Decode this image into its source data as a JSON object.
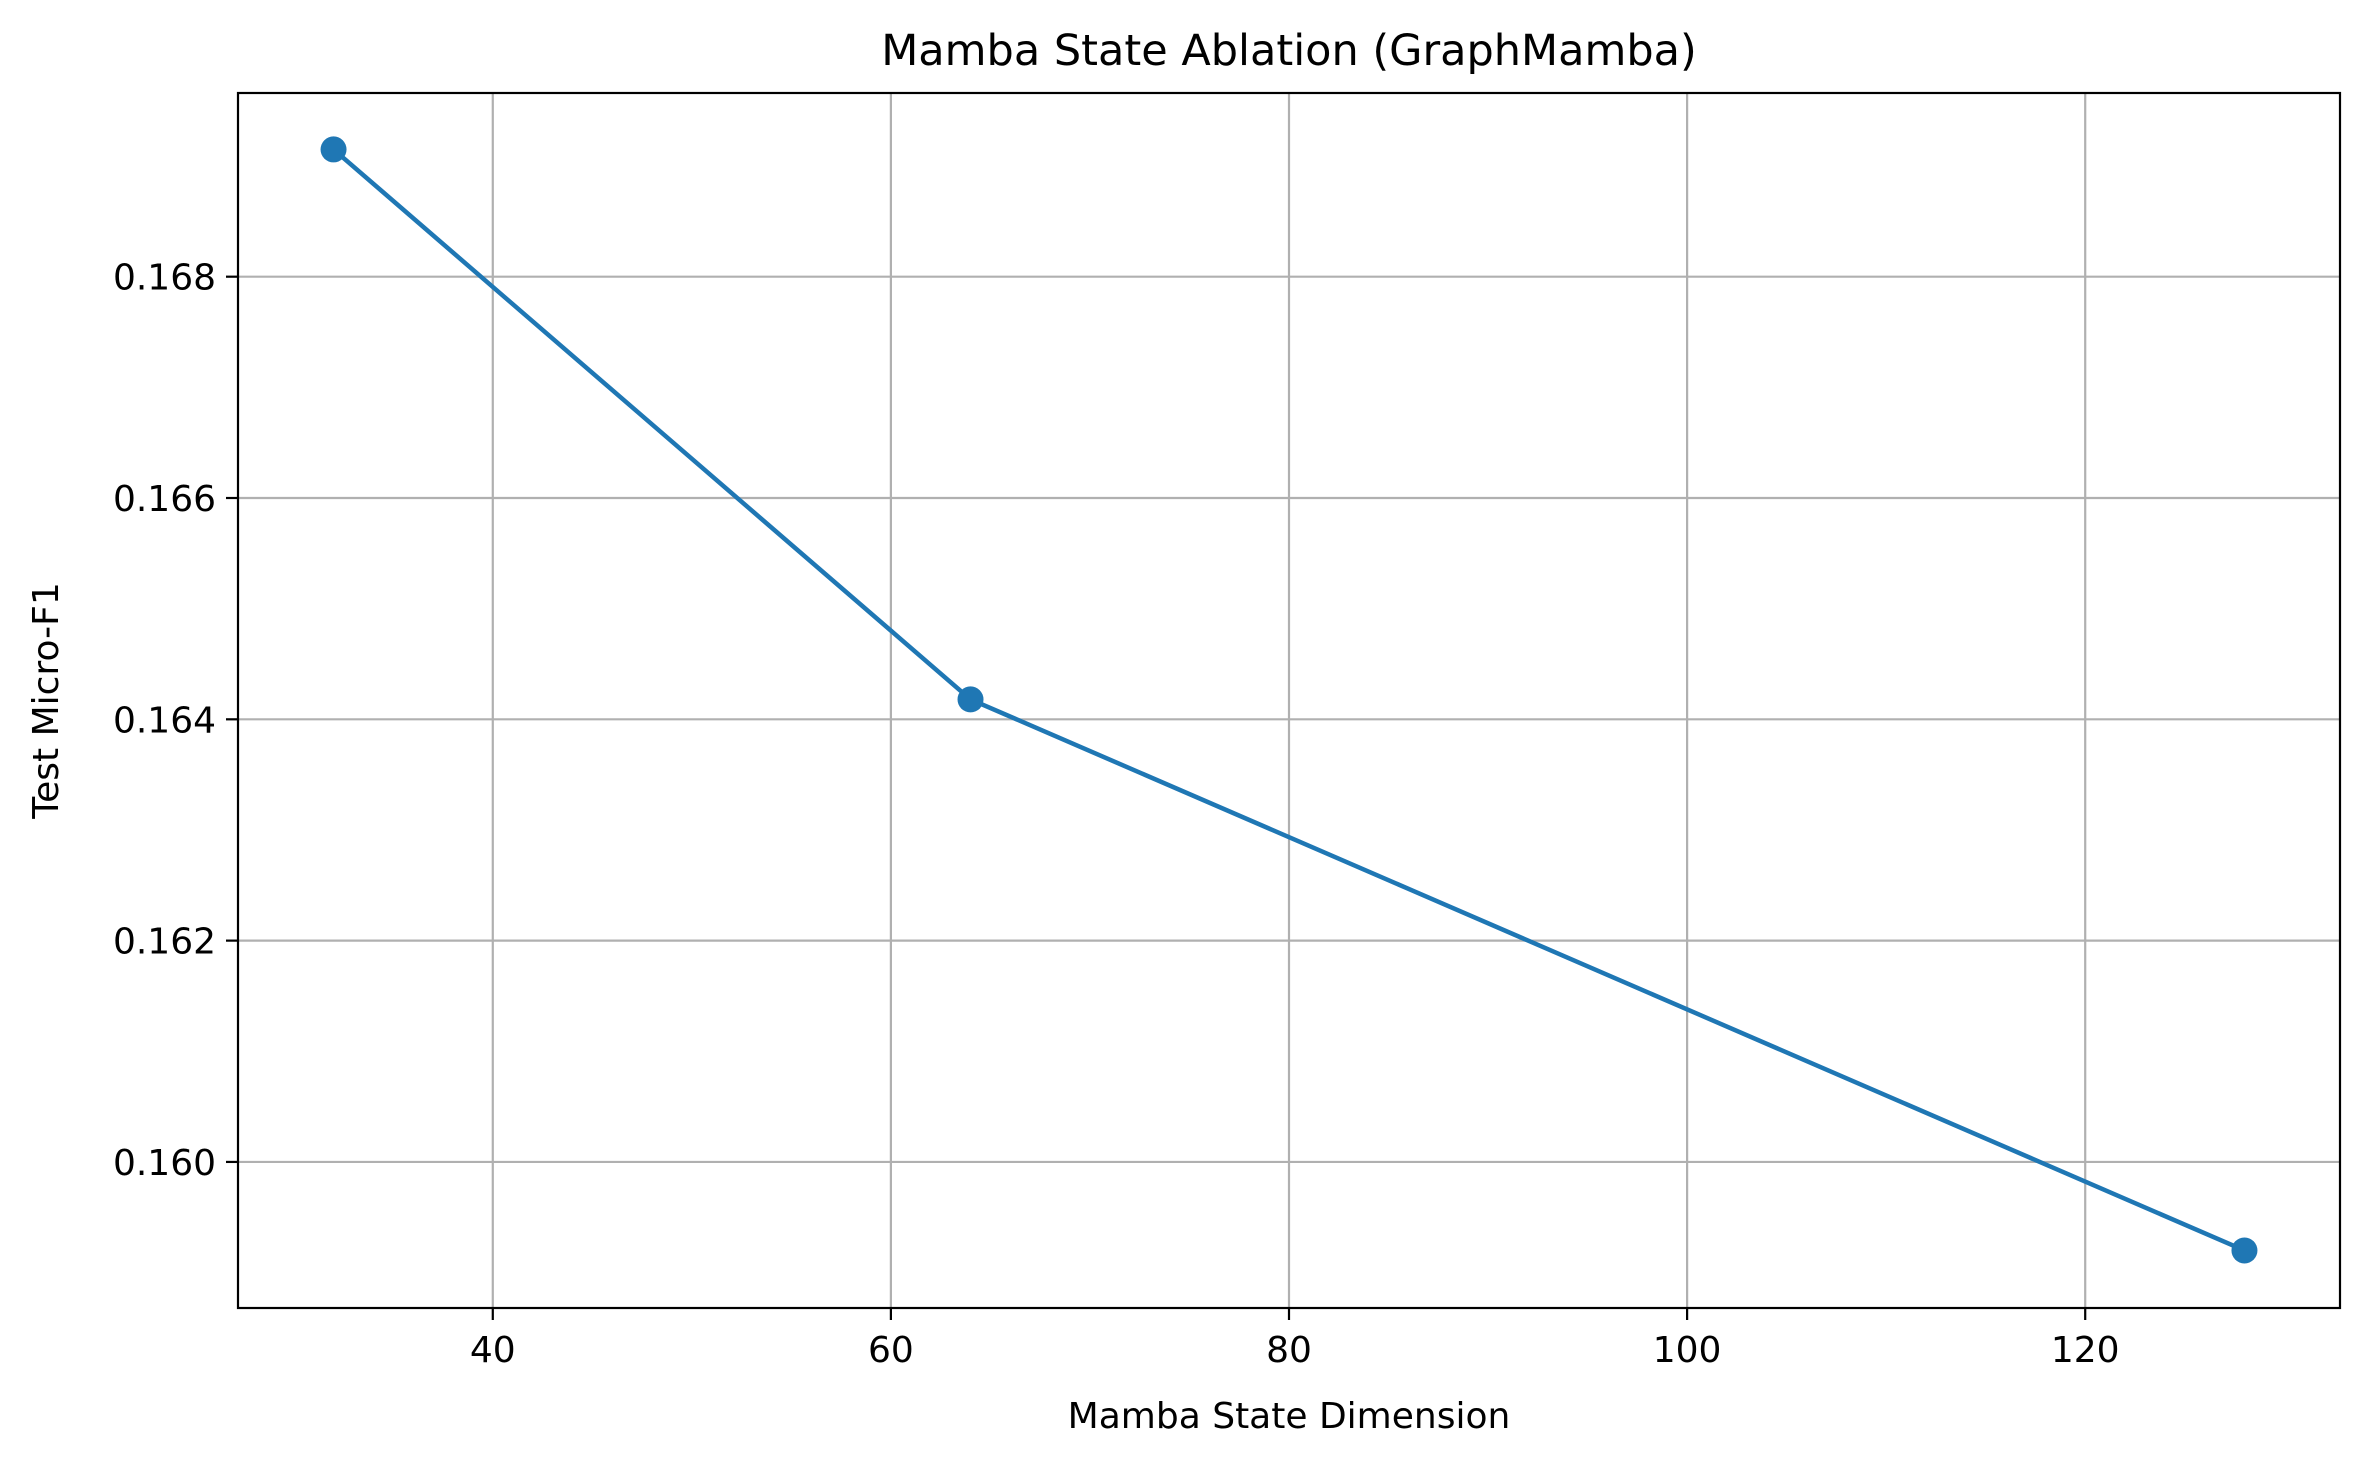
{
  "chart_data": {
    "type": "line",
    "title": "Mamba State Ablation (GraphMamba)",
    "xlabel": "Mamba State Dimension",
    "ylabel": "Test Micro-F1",
    "x": [
      32,
      64,
      128
    ],
    "series": [
      {
        "values": [
          0.16915,
          0.16418,
          0.1592
        ],
        "color": "#1f77b4",
        "marker": "circle"
      }
    ],
    "xlim": [
      27.2,
      132.8
    ],
    "ylim": [
      0.15868,
      0.16966
    ],
    "xticks": [
      40,
      60,
      80,
      100,
      120
    ],
    "xtick_labels": [
      "40",
      "60",
      "80",
      "100",
      "120"
    ],
    "yticks": [
      0.16,
      0.162,
      0.164,
      0.166,
      0.168
    ],
    "ytick_labels": [
      "0.160",
      "0.162",
      "0.164",
      "0.166",
      "0.168"
    ],
    "grid": true,
    "grid_color": "#b0b0b0",
    "legend": false
  }
}
